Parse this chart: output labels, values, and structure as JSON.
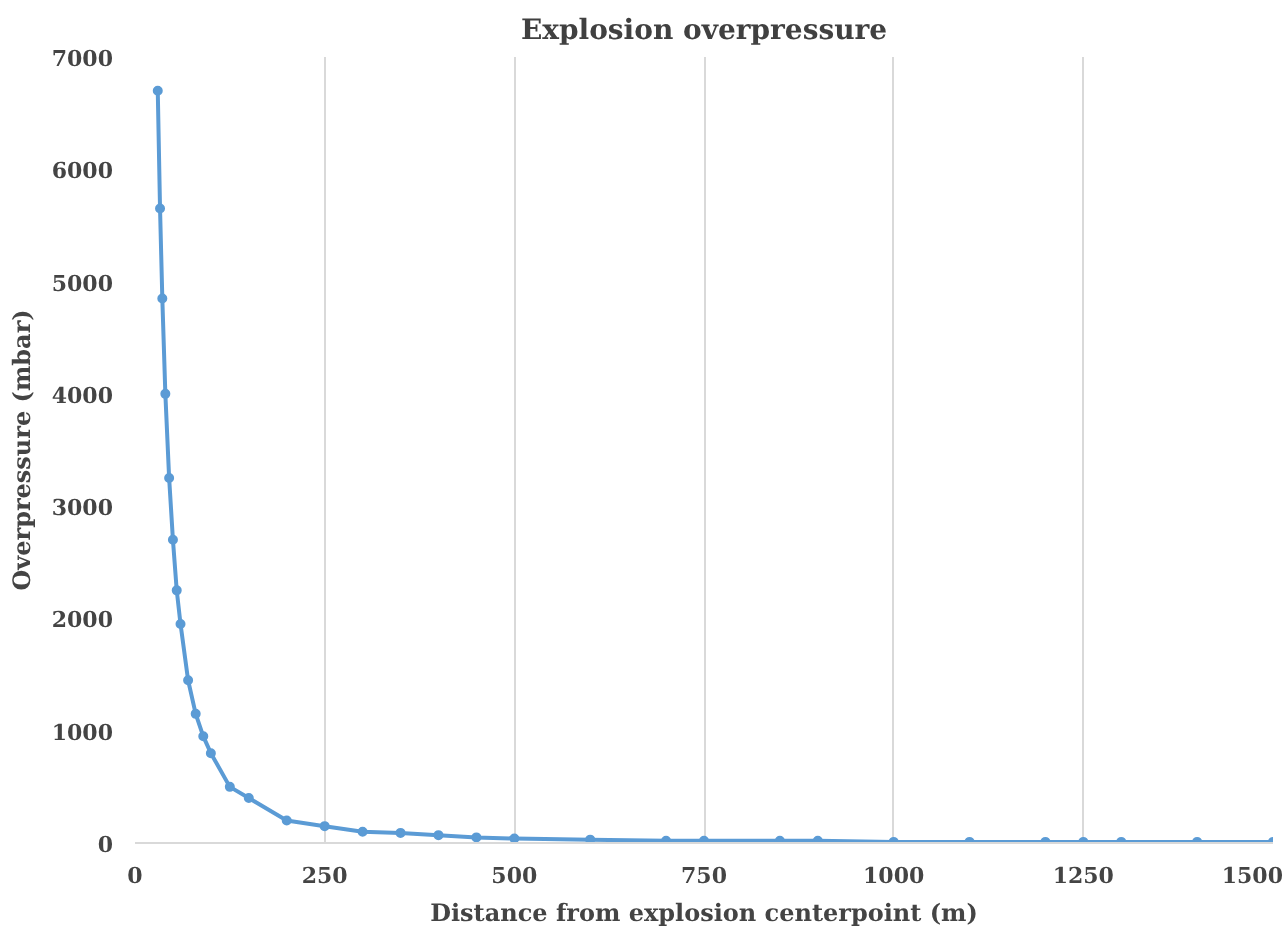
{
  "chart_data": {
    "type": "line",
    "title": "Explosion overpressure",
    "xlabel": "Distance from explosion centerpoint (m)",
    "ylabel": "Overpressure (mbar)",
    "x": [
      30,
      33,
      36,
      40,
      45,
      50,
      55,
      60,
      70,
      80,
      90,
      100,
      125,
      150,
      200,
      250,
      300,
      350,
      400,
      450,
      500,
      600,
      700,
      750,
      850,
      900,
      1000,
      1100,
      1200,
      1250,
      1300,
      1400,
      1500
    ],
    "series": [
      {
        "color": "#5b9bd5",
        "values": [
          6700,
          5650,
          4850,
          4000,
          3250,
          2700,
          2250,
          1950,
          1450,
          1150,
          950,
          800,
          500,
          400,
          200,
          150,
          100,
          90,
          70,
          50,
          40,
          30,
          20,
          20,
          20,
          20,
          10,
          10,
          10,
          10,
          10,
          10,
          10
        ]
      }
    ],
    "xlim": [
      0,
      1500
    ],
    "xticks": [
      0,
      250,
      500,
      750,
      1000,
      1250,
      1500
    ],
    "ylim": [
      0,
      7000
    ],
    "yticks": [
      0,
      1000,
      2000,
      3000,
      4000,
      5000,
      6000,
      7000
    ],
    "grid": "x",
    "marker": "circle",
    "line_style": "solid"
  }
}
